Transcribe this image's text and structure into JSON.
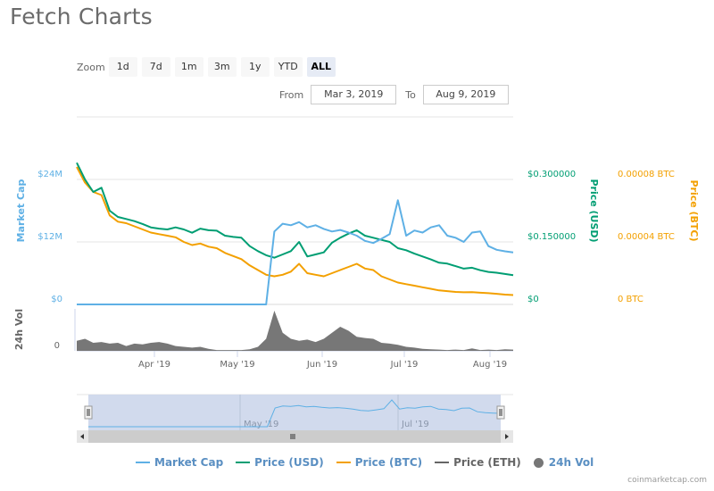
{
  "page": {
    "title": "Fetch Charts",
    "credit": "coinmarketcap.com"
  },
  "zoom": {
    "label": "Zoom",
    "buttons": [
      {
        "label": "1d",
        "active": false
      },
      {
        "label": "7d",
        "active": false
      },
      {
        "label": "1m",
        "active": false
      },
      {
        "label": "3m",
        "active": false
      },
      {
        "label": "1y",
        "active": false
      },
      {
        "label": "YTD",
        "active": false
      },
      {
        "label": "ALL",
        "active": true
      }
    ]
  },
  "range": {
    "from_label": "From",
    "from_value": "Mar 3, 2019",
    "to_label": "To",
    "to_value": "Aug 9, 2019"
  },
  "legend": [
    {
      "label": "Market Cap",
      "color": "#5eb0e5",
      "kind": "line"
    },
    {
      "label": "Price (USD)",
      "color": "#009e73",
      "kind": "line"
    },
    {
      "label": "Price (BTC)",
      "color": "#f3a000",
      "kind": "line"
    },
    {
      "label": "Price (ETH)",
      "color": "#666666",
      "kind": "line"
    },
    {
      "label": "24h Vol",
      "color": "#777777",
      "kind": "dot"
    }
  ],
  "colors": {
    "market_cap": "#5eb0e5",
    "price_usd": "#009e73",
    "price_btc": "#f3a000",
    "volume": "#777777",
    "grid": "#e6e6e6",
    "navigator_mask": "#ccd6eb"
  },
  "chart_data": {
    "type": "line",
    "title": "Fetch Charts",
    "x_range": [
      "Mar 3, 2019",
      "Aug 9, 2019"
    ],
    "xticks": [
      "Apr '19",
      "May '19",
      "Jun '19",
      "Jul '19",
      "Aug '19"
    ],
    "axes": {
      "market_cap": {
        "label": "Market Cap",
        "ticks": [
          "$0",
          "$12M",
          "$24M"
        ],
        "ylim": [
          0,
          36000000
        ]
      },
      "price_usd": {
        "label": "Price (USD)",
        "ticks": [
          "$0",
          "$0.150000",
          "$0.300000"
        ],
        "ylim": [
          0,
          0.45
        ]
      },
      "price_btc": {
        "label": "Price (BTC)",
        "ticks": [
          "0 BTC",
          "0.00004 BTC",
          "0.00008 BTC"
        ],
        "ylim": [
          0,
          0.00012
        ]
      },
      "volume": {
        "label": "24h Vol",
        "ticks": [
          "0"
        ]
      }
    },
    "x_days": [
      0,
      3,
      6,
      9,
      12,
      15,
      18,
      21,
      24,
      27,
      30,
      33,
      36,
      39,
      42,
      45,
      48,
      51,
      54,
      57,
      60,
      63,
      66,
      69,
      72,
      75,
      78,
      81,
      84,
      87,
      90,
      93,
      96,
      99,
      102,
      105,
      108,
      111,
      114,
      117,
      120,
      123,
      126,
      129,
      132,
      135,
      138,
      141,
      144,
      147,
      150,
      153,
      156,
      159
    ],
    "series": [
      {
        "name": "Market Cap",
        "unit": "USD",
        "values": [
          0,
          0,
          0,
          0,
          0,
          0,
          0,
          0,
          0,
          0,
          0,
          0,
          0,
          0,
          0,
          0,
          0,
          0,
          0,
          0,
          0,
          0,
          0,
          0,
          14000000,
          15500000,
          15200000,
          15800000,
          14800000,
          15200000,
          14500000,
          14000000,
          14300000,
          13800000,
          13200000,
          12200000,
          11800000,
          12600000,
          13500000,
          20000000,
          13200000,
          14200000,
          13800000,
          14800000,
          15200000,
          13200000,
          12800000,
          12000000,
          13800000,
          14000000,
          11200000,
          10500000,
          10200000,
          10000000
        ]
      },
      {
        "name": "Price (USD)",
        "unit": "USD",
        "values": [
          0.34,
          0.3,
          0.27,
          0.28,
          0.225,
          0.21,
          0.205,
          0.2,
          0.193,
          0.185,
          0.182,
          0.18,
          0.185,
          0.18,
          0.172,
          0.182,
          0.178,
          0.177,
          0.165,
          0.162,
          0.16,
          0.14,
          0.128,
          0.118,
          0.112,
          0.12,
          0.128,
          0.15,
          0.115,
          0.12,
          0.125,
          0.148,
          0.16,
          0.17,
          0.178,
          0.165,
          0.16,
          0.155,
          0.15,
          0.135,
          0.13,
          0.122,
          0.115,
          0.108,
          0.1,
          0.098,
          0.092,
          0.086,
          0.088,
          0.082,
          0.078,
          0.076,
          0.073,
          0.07
        ]
      },
      {
        "name": "Price (BTC)",
        "unit": "BTC",
        "values": [
          8.8e-05,
          7.8e-05,
          7.2e-05,
          7e-05,
          5.7e-05,
          5.3e-05,
          5.2e-05,
          5e-05,
          4.8e-05,
          4.6e-05,
          4.5e-05,
          4.4e-05,
          4.3e-05,
          4e-05,
          3.8e-05,
          3.9e-05,
          3.7e-05,
          3.6e-05,
          3.3e-05,
          3.1e-05,
          2.9e-05,
          2.5e-05,
          2.2e-05,
          1.9e-05,
          1.8e-05,
          1.9e-05,
          2.1e-05,
          2.6e-05,
          2e-05,
          1.9e-05,
          1.8e-05,
          2e-05,
          2.2e-05,
          2.4e-05,
          2.6e-05,
          2.3e-05,
          2.2e-05,
          1.8e-05,
          1.6e-05,
          1.4e-05,
          1.3e-05,
          1.2e-05,
          1.1e-05,
          1e-05,
          9e-06,
          8.5e-06,
          8e-06,
          7.8e-06,
          7.9e-06,
          7.5e-06,
          7.2e-06,
          6.8e-06,
          6.3e-06,
          6e-06
        ]
      },
      {
        "name": "24h Vol",
        "unit": "relative",
        "values": [
          0.25,
          0.3,
          0.2,
          0.22,
          0.18,
          0.2,
          0.12,
          0.18,
          0.16,
          0.2,
          0.22,
          0.18,
          0.12,
          0.1,
          0.08,
          0.1,
          0.05,
          0.02,
          0.02,
          0.02,
          0.02,
          0.04,
          0.1,
          0.3,
          1.0,
          0.45,
          0.3,
          0.25,
          0.28,
          0.22,
          0.3,
          0.45,
          0.6,
          0.5,
          0.35,
          0.32,
          0.3,
          0.2,
          0.18,
          0.15,
          0.1,
          0.08,
          0.05,
          0.04,
          0.03,
          0.02,
          0.03,
          0.02,
          0.06,
          0.02,
          0.03,
          0.02,
          0.04,
          0.03
        ]
      }
    ],
    "grid": true,
    "legend_position": "bottom"
  }
}
